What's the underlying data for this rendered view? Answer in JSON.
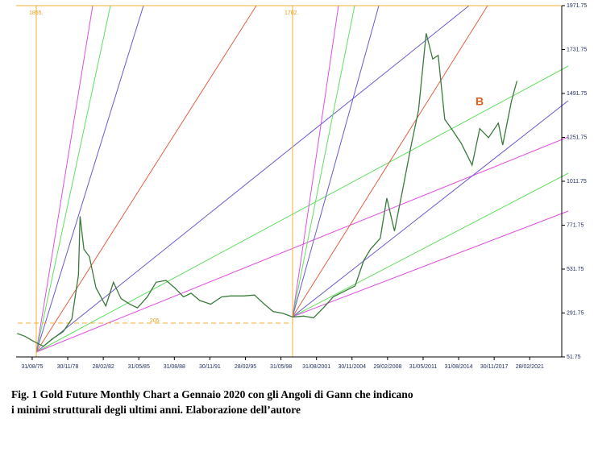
{
  "chart_data": {
    "type": "line",
    "caption": "Fig. 1 Gold Future Monthly Chart a Gennaio  2020 con gli Angoli di Gann che indicano  i minimi strutturali  degli ultimi  anni. Elaborazione dell’autore",
    "annotations": [
      "1855.",
      "1702.",
      "205",
      "B"
    ],
    "x": [
      1974.3,
      1975.0,
      1975.7,
      1976.7,
      1977.5,
      1978.5,
      1979.3,
      1979.9,
      1980.05,
      1980.4,
      1980.9,
      1981.5,
      1982.4,
      1983.1,
      1983.8,
      1984.6,
      1985.3,
      1986.2,
      1987.0,
      1987.9,
      1988.7,
      1989.5,
      1990.2,
      1991.0,
      1992.0,
      1993.0,
      1993.8,
      1995.0,
      1996.0,
      1996.9,
      1997.7,
      1998.6,
      1999.5,
      2000.5,
      2001.4,
      2002.3,
      2003.2,
      2004.2,
      2005.2,
      2006.0,
      2006.6,
      2007.5,
      2008.1,
      2008.8,
      2009.5,
      2010.3,
      2011.0,
      2011.7,
      2012.3,
      2012.8,
      2013.4,
      2014.0,
      2014.9,
      2015.9,
      2016.6,
      2017.4,
      2018.3,
      2018.7,
      2019.5,
      2020.0
    ],
    "values": [
      180,
      165,
      140,
      110,
      150,
      190,
      260,
      500,
      820,
      640,
      600,
      430,
      330,
      460,
      370,
      340,
      320,
      380,
      460,
      470,
      430,
      380,
      400,
      360,
      340,
      380,
      385,
      385,
      390,
      340,
      300,
      290,
      270,
      275,
      265,
      320,
      380,
      410,
      440,
      580,
      640,
      700,
      920,
      740,
      950,
      1200,
      1400,
      1820,
      1680,
      1700,
      1350,
      1300,
      1220,
      1100,
      1300,
      1250,
      1330,
      1210,
      1450,
      1560
    ],
    "color": "#3a7a3a",
    "xlim": [
      1974.2,
      2024.1
    ],
    "xticks": [
      {
        "value": 1975.67,
        "label": "31/08/75"
      },
      {
        "value": 1978.92,
        "label": "30/11/78"
      },
      {
        "value": 1982.17,
        "label": "28/02/82"
      },
      {
        "value": 1985.42,
        "label": "31/05/85"
      },
      {
        "value": 1988.67,
        "label": "31/08/88"
      },
      {
        "value": 1991.92,
        "label": "30/11/91"
      },
      {
        "value": 1995.17,
        "label": "28/02/95"
      },
      {
        "value": 1998.42,
        "label": "31/05/98"
      },
      {
        "value": 2001.67,
        "label": "31/08/2001"
      },
      {
        "value": 2004.92,
        "label": "30/11/2004"
      },
      {
        "value": 2008.17,
        "label": "29/02/2008"
      },
      {
        "value": 2011.42,
        "label": "31/05/2011"
      },
      {
        "value": 2014.67,
        "label": "31/08/2014"
      },
      {
        "value": 2017.92,
        "label": "30/11/2017"
      },
      {
        "value": 2021.17,
        "label": "28/02/2021"
      }
    ],
    "ylim": [
      51.75,
      1971.75
    ],
    "yticks": [
      51.75,
      291.75,
      531.75,
      771.75,
      1011.75,
      1251.75,
      1491.75,
      1731.75,
      1971.75
    ]
  }
}
